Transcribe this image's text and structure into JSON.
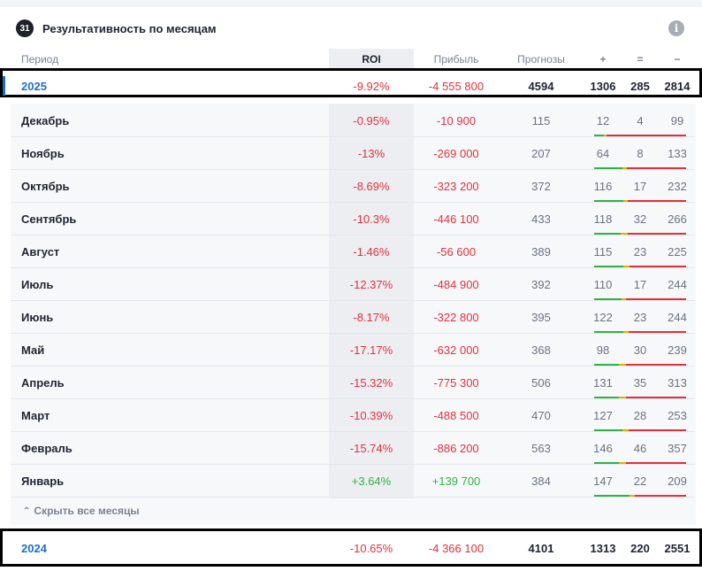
{
  "header": {
    "calendar_icon_text": "31",
    "title": "Результативность по месяцам",
    "info_icon_text": "i"
  },
  "columns": {
    "period": "Период",
    "roi": "ROI",
    "profit": "Прибыль",
    "forecasts": "Прогнозы",
    "plus": "+",
    "equal": "=",
    "minus": "−"
  },
  "year_2025": {
    "period": "2025",
    "roi": "-9.92%",
    "profit": "-4 555 800",
    "forecasts": "4594",
    "plus": "1306",
    "equal": "285",
    "minus": "2814"
  },
  "months": [
    {
      "period": "Декабрь",
      "roi": "-0.95%",
      "profit": "-10 900",
      "forecasts": "115",
      "plus": "12",
      "equal": "4",
      "minus": "99",
      "sign": "neg"
    },
    {
      "period": "Ноябрь",
      "roi": "-13%",
      "profit": "-269 000",
      "forecasts": "207",
      "plus": "64",
      "equal": "8",
      "minus": "133",
      "sign": "neg"
    },
    {
      "period": "Октябрь",
      "roi": "-8.69%",
      "profit": "-323 200",
      "forecasts": "372",
      "plus": "116",
      "equal": "17",
      "minus": "232",
      "sign": "neg"
    },
    {
      "period": "Сентябрь",
      "roi": "-10.3%",
      "profit": "-446 100",
      "forecasts": "433",
      "plus": "118",
      "equal": "32",
      "minus": "266",
      "sign": "neg"
    },
    {
      "period": "Август",
      "roi": "-1.46%",
      "profit": "-56 600",
      "forecasts": "389",
      "plus": "115",
      "equal": "23",
      "minus": "225",
      "sign": "neg"
    },
    {
      "period": "Июль",
      "roi": "-12.37%",
      "profit": "-484 900",
      "forecasts": "392",
      "plus": "110",
      "equal": "17",
      "minus": "244",
      "sign": "neg"
    },
    {
      "period": "Июнь",
      "roi": "-8.17%",
      "profit": "-322 800",
      "forecasts": "395",
      "plus": "122",
      "equal": "23",
      "minus": "244",
      "sign": "neg"
    },
    {
      "period": "Май",
      "roi": "-17.17%",
      "profit": "-632 000",
      "forecasts": "368",
      "plus": "98",
      "equal": "30",
      "minus": "239",
      "sign": "neg"
    },
    {
      "period": "Апрель",
      "roi": "-15.32%",
      "profit": "-775 300",
      "forecasts": "506",
      "plus": "131",
      "equal": "35",
      "minus": "313",
      "sign": "neg"
    },
    {
      "period": "Март",
      "roi": "-10.39%",
      "profit": "-488 500",
      "forecasts": "470",
      "plus": "127",
      "equal": "28",
      "minus": "253",
      "sign": "neg"
    },
    {
      "period": "Февраль",
      "roi": "-15.74%",
      "profit": "-886 200",
      "forecasts": "563",
      "plus": "146",
      "equal": "46",
      "minus": "357",
      "sign": "neg"
    },
    {
      "period": "Январь",
      "roi": "+3.64%",
      "profit": "+139 700",
      "forecasts": "384",
      "plus": "147",
      "equal": "22",
      "minus": "209",
      "sign": "pos"
    }
  ],
  "collapse_label": "Скрыть все месяцы",
  "year_2024": {
    "period": "2024",
    "roi": "-10.65%",
    "profit": "-4 366 100",
    "forecasts": "4101",
    "plus": "1313",
    "equal": "220",
    "minus": "2551"
  },
  "colors": {
    "positive": "#2fb344",
    "draw": "#e6b000",
    "negative": "#e0323e",
    "year_link": "#1f6fc7"
  }
}
